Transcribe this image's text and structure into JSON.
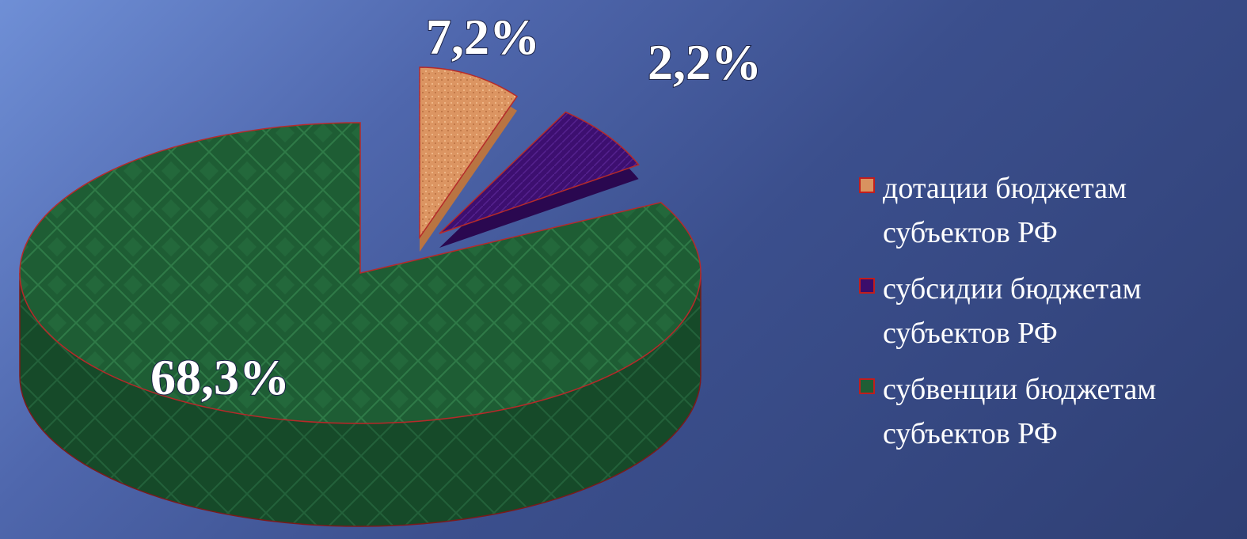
{
  "chart_data": {
    "type": "pie",
    "three_d": true,
    "exploded": true,
    "legend_position": "right",
    "slices": [
      {
        "label": "дотации бюджетам субъектов РФ",
        "value": 7.2,
        "data_label": "7,2%",
        "color": "#d9925f"
      },
      {
        "label": "субсидии бюджетам субъектов РФ",
        "value": 2.2,
        "data_label": "2,2%",
        "color": "#3b0d6b"
      },
      {
        "label": "субвенции бюджетам субъектов РФ",
        "value": 68.3,
        "data_label": "68,3%",
        "color": "#1f5e35"
      }
    ]
  },
  "legend": {
    "items": [
      {
        "label": "дотации бюджетам субъектов РФ",
        "color": "#d9925f"
      },
      {
        "label": "субсидии бюджетам субъектов РФ",
        "color": "#3b0d6b"
      },
      {
        "label": "субвенции бюджетам субъектов РФ",
        "color": "#1f5e35"
      }
    ]
  }
}
